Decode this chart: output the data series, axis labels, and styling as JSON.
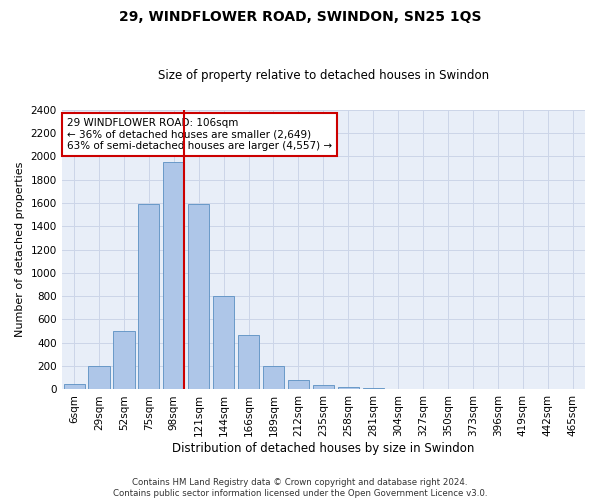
{
  "title": "29, WINDFLOWER ROAD, SWINDON, SN25 1QS",
  "subtitle": "Size of property relative to detached houses in Swindon",
  "xlabel": "Distribution of detached houses by size in Swindon",
  "ylabel": "Number of detached properties",
  "categories": [
    "6sqm",
    "29sqm",
    "52sqm",
    "75sqm",
    "98sqm",
    "121sqm",
    "144sqm",
    "166sqm",
    "189sqm",
    "212sqm",
    "235sqm",
    "258sqm",
    "281sqm",
    "304sqm",
    "327sqm",
    "350sqm",
    "373sqm",
    "396sqm",
    "419sqm",
    "442sqm",
    "465sqm"
  ],
  "values": [
    50,
    200,
    500,
    1590,
    1950,
    1590,
    800,
    470,
    200,
    85,
    35,
    25,
    15,
    5,
    0,
    0,
    0,
    0,
    0,
    0,
    0
  ],
  "bar_color": "#aec6e8",
  "bar_edge_color": "#5a8fc2",
  "property_line_color": "#cc0000",
  "property_bin_index": 4,
  "annotation_text": "29 WINDFLOWER ROAD: 106sqm\n← 36% of detached houses are smaller (2,649)\n63% of semi-detached houses are larger (4,557) →",
  "annotation_box_color": "#cc0000",
  "ylim": [
    0,
    2400
  ],
  "yticks": [
    0,
    200,
    400,
    600,
    800,
    1000,
    1200,
    1400,
    1600,
    1800,
    2000,
    2200,
    2400
  ],
  "grid_color": "#ccd5e8",
  "background_color": "#e8eef8",
  "footer": "Contains HM Land Registry data © Crown copyright and database right 2024.\nContains public sector information licensed under the Open Government Licence v3.0."
}
